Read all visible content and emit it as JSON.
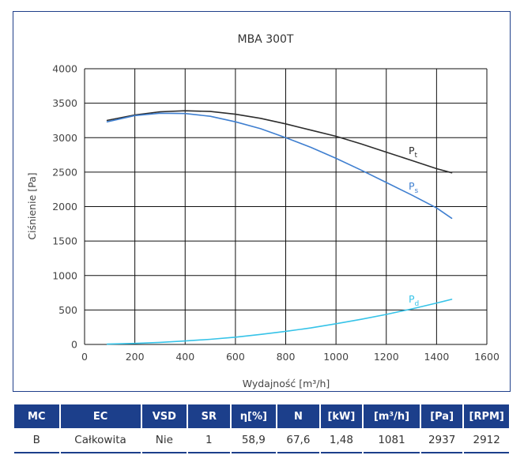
{
  "chart_data": {
    "type": "line",
    "title": "MBA 300T",
    "xlabel": "Wydajność [m³/h]",
    "ylabel": "Ciśnienie [Pa]",
    "xlim": [
      0,
      1600
    ],
    "ylim": [
      0,
      4000
    ],
    "x_ticks": [
      "0",
      "200",
      "400",
      "600",
      "800",
      "1000",
      "1200",
      "1400",
      "1600"
    ],
    "y_ticks": [
      "0",
      "500",
      "1000",
      "1500",
      "2000",
      "2500",
      "3000",
      "3500",
      "4000"
    ],
    "grid": true,
    "series": [
      {
        "name": "Pt",
        "label_main": "P",
        "label_sub": "t",
        "color": "#2d2d2d",
        "x": [
          90,
          200,
          300,
          400,
          500,
          600,
          700,
          800,
          900,
          1000,
          1100,
          1200,
          1300,
          1400,
          1460
        ],
        "y": [
          3250,
          3330,
          3375,
          3390,
          3380,
          3340,
          3280,
          3200,
          3110,
          3020,
          2910,
          2790,
          2670,
          2550,
          2490
        ]
      },
      {
        "name": "Ps",
        "label_main": "P",
        "label_sub": "s",
        "color": "#3f7fd0",
        "x": [
          90,
          200,
          300,
          400,
          500,
          600,
          700,
          800,
          900,
          1000,
          1100,
          1200,
          1300,
          1400,
          1460
        ],
        "y": [
          3230,
          3320,
          3355,
          3350,
          3310,
          3230,
          3130,
          3000,
          2860,
          2700,
          2530,
          2350,
          2170,
          1980,
          1830
        ]
      },
      {
        "name": "Pd",
        "label_main": "P",
        "label_sub": "d",
        "color": "#36c3e8",
        "x": [
          90,
          200,
          300,
          400,
          500,
          600,
          700,
          800,
          900,
          1000,
          1100,
          1200,
          1300,
          1400,
          1460
        ],
        "y": [
          5,
          15,
          30,
          50,
          75,
          105,
          145,
          190,
          240,
          300,
          365,
          435,
          515,
          600,
          655
        ]
      }
    ]
  },
  "table": {
    "headers": [
      "MC",
      "EC",
      "VSD",
      "SR",
      "η[%]",
      "N",
      "[kW]",
      "[m³/h]",
      "[Pa]",
      "[RPM]"
    ],
    "row": [
      "B",
      "Całkowita",
      "Nie",
      "1",
      "58,9",
      "67,6",
      "1,48",
      "1081",
      "2937",
      "2912"
    ]
  }
}
